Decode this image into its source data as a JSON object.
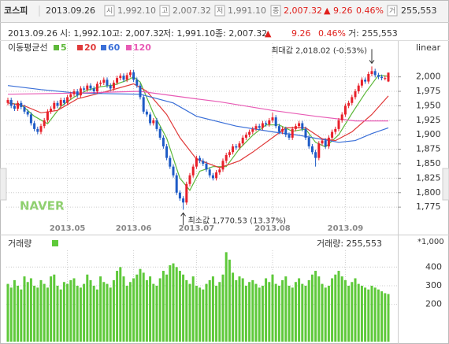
{
  "header": {
    "name": "코스피",
    "date": "2013.09.26",
    "open_icon": "시",
    "open": "1,992.10",
    "high_icon": "고",
    "high": "2,007.32",
    "low_icon": "저",
    "low": "1,991.10",
    "close_icon": "종",
    "close": "2,007.32",
    "change": "▲ 9.26",
    "change_pct": "0.46%",
    "volume_icon": "거",
    "volume": "255,553"
  },
  "info": {
    "date": "2013.09.26",
    "open": "시: 1,992.10",
    "high": "고: 2,007.32",
    "low": "저: 1,991.10",
    "close": "종: 2,007.32",
    "arrow": "▲",
    "change": "9.26",
    "change_pct": "0.46%",
    "volume": "거: 255,553"
  },
  "chart_data": {
    "type": "candlestick",
    "scale": "linear",
    "legend_title": "이동평균선",
    "up_color": "#e8202a",
    "down_color": "#1e5bc6",
    "grid": true,
    "open": [
      1955,
      1960,
      1950,
      1945,
      1955,
      1948,
      1940,
      1935,
      1920,
      1910,
      1905,
      1915,
      1925,
      1940,
      1945,
      1955,
      1950,
      1960,
      1955,
      1965,
      1970,
      1975,
      1968,
      1980,
      1978,
      1985,
      1980,
      1975,
      1988,
      1990,
      1995,
      1985,
      1980,
      1990,
      1998,
      2002,
      1995,
      2003,
      2008,
      1995,
      1985,
      1965,
      1940,
      1935,
      1920,
      1925,
      1910,
      1895,
      1880,
      1860,
      1845,
      1830,
      1800,
      1790,
      1783,
      1815,
      1830,
      1845,
      1860,
      1855,
      1850,
      1840,
      1830,
      1825,
      1835,
      1840,
      1855,
      1865,
      1870,
      1880,
      1878,
      1885,
      1895,
      1900,
      1905,
      1910,
      1915,
      1912,
      1920,
      1918,
      1925,
      1930,
      1915,
      1905,
      1910,
      1900,
      1895,
      1910,
      1915,
      1920,
      1910,
      1895,
      1880,
      1870,
      1860,
      1885,
      1890,
      1880,
      1895,
      1905,
      1910,
      1925,
      1935,
      1950,
      1955,
      1965,
      1975,
      1985,
      1995,
      1992,
      2005,
      2010,
      2003,
      2000,
      1998,
      1992.1
    ],
    "high": [
      1964,
      1964,
      1954,
      1959,
      1959,
      1952,
      1944,
      1939,
      1924,
      1914,
      1919,
      1929,
      1944,
      1949,
      1959,
      1959,
      1964,
      1964,
      1969,
      1974,
      1979,
      1979,
      1984,
      1984,
      1989,
      1989,
      1984,
      1992,
      1994,
      1999,
      1999,
      1989,
      1994,
      2002,
      2006,
      2006,
      2007,
      2012,
      2012,
      1999,
      1989,
      1969,
      1944,
      1939,
      1929,
      1929,
      1914,
      1899,
      1884,
      1864,
      1849,
      1834,
      1804,
      1794,
      1819,
      1834,
      1849,
      1864,
      1864,
      1859,
      1854,
      1844,
      1834,
      1839,
      1844,
      1859,
      1869,
      1874,
      1884,
      1884,
      1889,
      1899,
      1904,
      1909,
      1914,
      1919,
      1919,
      1924,
      1924,
      1929,
      1938,
      1934,
      1919,
      1914,
      1914,
      1904,
      1914,
      1919,
      1924,
      1924,
      1914,
      1899,
      1884,
      1874,
      1889,
      1894,
      1894,
      1899,
      1909,
      1914,
      1929,
      1939,
      1954,
      1959,
      1969,
      1979,
      1989,
      1999,
      1999,
      2009,
      2018.02,
      2014,
      2007,
      2004,
      2002,
      2007.32
    ],
    "low": [
      1951,
      1946,
      1941,
      1941,
      1944,
      1936,
      1931,
      1916,
      1906,
      1901,
      1901,
      1911,
      1921,
      1936,
      1941,
      1946,
      1946,
      1951,
      1951,
      1961,
      1966,
      1964,
      1964,
      1974,
      1974,
      1976,
      1971,
      1971,
      1984,
      1986,
      1981,
      1976,
      1976,
      1986,
      1994,
      1991,
      1991,
      1999,
      1991,
      1981,
      1961,
      1936,
      1931,
      1916,
      1916,
      1906,
      1891,
      1876,
      1856,
      1841,
      1826,
      1796,
      1786,
      1770.53,
      1779,
      1811,
      1826,
      1841,
      1851,
      1846,
      1836,
      1826,
      1821,
      1821,
      1831,
      1836,
      1851,
      1861,
      1866,
      1874,
      1874,
      1881,
      1891,
      1896,
      1901,
      1906,
      1908,
      1908,
      1914,
      1914,
      1921,
      1911,
      1901,
      1901,
      1896,
      1891,
      1891,
      1906,
      1911,
      1906,
      1891,
      1876,
      1866,
      1845,
      1856,
      1881,
      1876,
      1876,
      1891,
      1901,
      1906,
      1921,
      1931,
      1946,
      1951,
      1961,
      1971,
      1981,
      1988,
      1988,
      2001,
      1999,
      1996,
      1994,
      1994,
      1991.1
    ],
    "close": [
      1960,
      1950,
      1945,
      1955,
      1948,
      1940,
      1935,
      1920,
      1910,
      1905,
      1915,
      1925,
      1940,
      1945,
      1955,
      1950,
      1960,
      1955,
      1965,
      1970,
      1975,
      1968,
      1980,
      1978,
      1985,
      1980,
      1975,
      1988,
      1990,
      1995,
      1985,
      1980,
      1990,
      1998,
      2002,
      1995,
      2003,
      2008,
      1995,
      1985,
      1965,
      1940,
      1935,
      1920,
      1925,
      1910,
      1895,
      1880,
      1860,
      1845,
      1830,
      1800,
      1790,
      1783,
      1815,
      1830,
      1845,
      1860,
      1855,
      1850,
      1840,
      1830,
      1825,
      1835,
      1840,
      1855,
      1865,
      1870,
      1880,
      1878,
      1885,
      1895,
      1900,
      1905,
      1910,
      1915,
      1912,
      1920,
      1918,
      1925,
      1930,
      1915,
      1905,
      1910,
      1900,
      1895,
      1910,
      1915,
      1920,
      1910,
      1895,
      1880,
      1870,
      1860,
      1885,
      1890,
      1880,
      1895,
      1905,
      1910,
      1925,
      1935,
      1950,
      1955,
      1965,
      1975,
      1985,
      1995,
      1992,
      2005,
      2010,
      2003,
      2000,
      1998,
      1998,
      2007.32
    ],
    "ylim": [
      1748,
      2058
    ],
    "yticks": [
      {
        "value": 1775,
        "label": "1,775"
      },
      {
        "value": 1800,
        "label": "1,800"
      },
      {
        "value": 1825,
        "label": "1,825"
      },
      {
        "value": 1850,
        "label": "1,850"
      },
      {
        "value": 1875,
        "label": "1,875"
      },
      {
        "value": 1900,
        "label": "1,900"
      },
      {
        "value": 1925,
        "label": "1,925"
      },
      {
        "value": 1950,
        "label": "1,950"
      },
      {
        "value": 1975,
        "label": "1,975"
      },
      {
        "value": 2000,
        "label": "2,000"
      }
    ],
    "xticks": [
      {
        "value": 18,
        "label": "2013.05"
      },
      {
        "value": 38,
        "label": "2013.06"
      },
      {
        "value": 57,
        "label": "2013.07"
      },
      {
        "value": 80,
        "label": "2013.08"
      },
      {
        "value": 102,
        "label": "2013.09"
      }
    ],
    "moving_averages": [
      {
        "name": "5",
        "color": "#5db83a",
        "x": [
          0,
          4,
          8,
          12,
          16,
          20,
          24,
          28,
          32,
          36,
          38,
          40,
          44,
          48,
          52,
          55,
          58,
          62,
          66,
          70,
          74,
          78,
          82,
          86,
          90,
          93,
          96,
          100,
          104,
          108,
          112,
          115
        ],
        "values": [
          1955,
          1952,
          1932,
          1919,
          1949,
          1965,
          1977,
          1983,
          1986,
          1994,
          2000,
          1991,
          1937,
          1894,
          1825,
          1804,
          1837,
          1845,
          1845,
          1876,
          1899,
          1917,
          1917,
          1906,
          1910,
          1887,
          1879,
          1900,
          1937,
          1972,
          2003,
          2001
        ]
      },
      {
        "name": "20",
        "color": "#e03a3a",
        "x": [
          0,
          5,
          10,
          15,
          21,
          30,
          38,
          42,
          48,
          52,
          57,
          64,
          70,
          74,
          80,
          84,
          90,
          95,
          99,
          104,
          110,
          115
        ],
        "values": [
          1955,
          1950,
          1938,
          1942,
          1962,
          1975,
          1988,
          1975,
          1935,
          1895,
          1858,
          1843,
          1855,
          1870,
          1895,
          1912,
          1912,
          1893,
          1890,
          1905,
          1935,
          1967
        ]
      },
      {
        "name": "60",
        "color": "#3a6fd8",
        "x": [
          0,
          10,
          21,
          40,
          50,
          57,
          69,
          80,
          88,
          100,
          105,
          110,
          115
        ],
        "values": [
          1985,
          1978,
          1972,
          1970,
          1955,
          1932,
          1915,
          1905,
          1899,
          1887,
          1890,
          1902,
          1912
        ]
      },
      {
        "name": "120",
        "color": "#e85bb5",
        "x": [
          0,
          20,
          40,
          57,
          64,
          80,
          93,
          105,
          115
        ],
        "values": [
          1970,
          1972,
          1975,
          1962,
          1957,
          1942,
          1932,
          1924,
          1924
        ]
      }
    ],
    "annotations": {
      "max": "최대값 2,018.02 (-0.53%)",
      "min": "최소값 1,770.53 (13.37%)"
    },
    "watermark": "NAVER",
    "volume": {
      "title": "거래량",
      "current_label": "거래량: 255,553",
      "unit_label": "*1,000",
      "color": "#5ec93a",
      "ylim": [
        0,
        490
      ],
      "yticks": [
        200,
        300,
        400
      ],
      "values": [
        310,
        290,
        330,
        300,
        280,
        350,
        320,
        340,
        300,
        290,
        330,
        310,
        290,
        350,
        360,
        300,
        280,
        320,
        310,
        330,
        340,
        300,
        290,
        310,
        360,
        330,
        300,
        280,
        350,
        320,
        310,
        290,
        330,
        380,
        400,
        350,
        300,
        320,
        340,
        360,
        390,
        370,
        330,
        350,
        310,
        300,
        340,
        380,
        360,
        410,
        420,
        400,
        380,
        360,
        330,
        310,
        350,
        300,
        290,
        280,
        310,
        330,
        350,
        300,
        320,
        360,
        480,
        440,
        370,
        330,
        350,
        340,
        300,
        320,
        330,
        310,
        290,
        300,
        340,
        320,
        360,
        310,
        300,
        330,
        350,
        300,
        290,
        320,
        340,
        310,
        300,
        330,
        360,
        380,
        350,
        310,
        290,
        300,
        340,
        360,
        380,
        350,
        330,
        300,
        320,
        340,
        310,
        300,
        290,
        280,
        300,
        290,
        280,
        270,
        260,
        255.553
      ]
    }
  }
}
